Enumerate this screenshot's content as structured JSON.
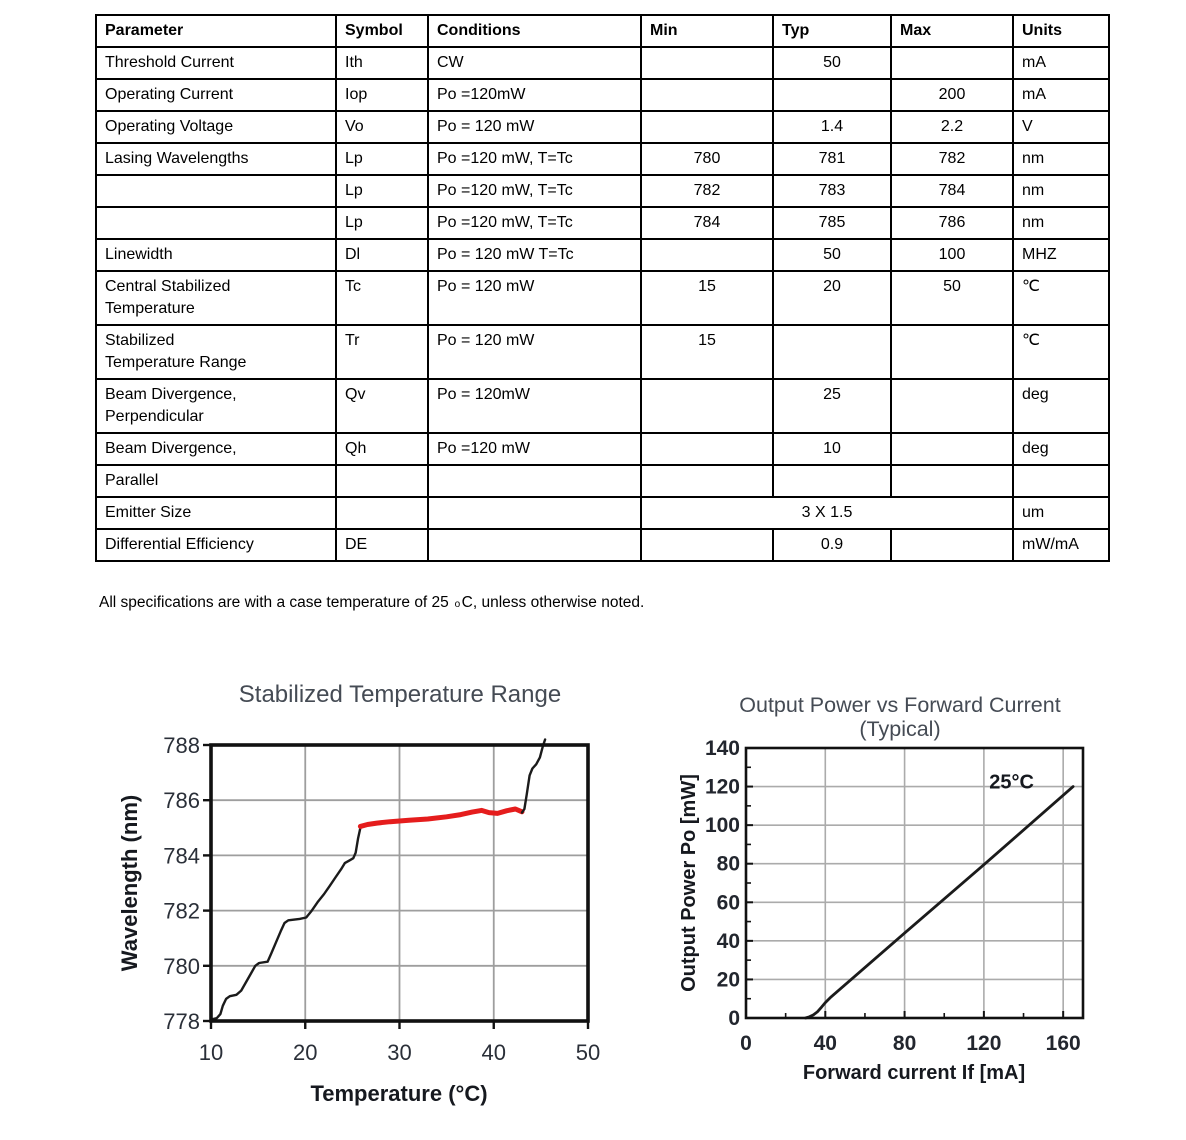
{
  "table": {
    "headers": [
      "Parameter",
      "Symbol",
      "Conditions",
      "Min",
      "Typ",
      "Max",
      "Units"
    ],
    "rows": [
      {
        "param": "Threshold Current",
        "symbol": "Ith",
        "cond": "CW",
        "min": "",
        "typ": "50",
        "max": "",
        "units": "mA"
      },
      {
        "param": "Operating Current",
        "symbol": "Iop",
        "cond": "Po =120mW",
        "min": "",
        "typ": "",
        "max": "200",
        "units": "mA"
      },
      {
        "param": "Operating Voltage",
        "symbol": "Vo",
        "cond": "Po = 120 mW",
        "min": "",
        "typ": "1.4",
        "max": "2.2",
        "units": "V"
      },
      {
        "param": "Lasing Wavelengths",
        "symbol": "Lp",
        "cond": "Po =120 mW, T=Tc",
        "min": "780",
        "typ": "781",
        "max": "782",
        "units": "nm"
      },
      {
        "param": "",
        "symbol": "Lp",
        "cond": "Po =120 mW, T=Tc",
        "min": "782",
        "typ": "783",
        "max": "784",
        "units": "nm"
      },
      {
        "param": "",
        "symbol": "Lp",
        "cond": "Po =120 mW, T=Tc",
        "min": "784",
        "typ": "785",
        "max": "786",
        "units": "nm"
      },
      {
        "param": "Linewidth",
        "symbol": "Dl",
        "cond": "Po = 120 mW T=Tc",
        "min": "",
        "typ": "50",
        "max": "100",
        "units": "MHZ"
      },
      {
        "param": "Central Stabilized\nTemperature",
        "symbol": "Tc",
        "cond": "Po = 120 mW",
        "min": "15",
        "typ": "20",
        "max": "50",
        "units": "℃"
      },
      {
        "param": "Stabilized\nTemperature Range",
        "symbol": "Tr",
        "cond": "Po = 120 mW",
        "min": "15",
        "typ": "",
        "max": "",
        "units": "℃"
      },
      {
        "param": "Beam Divergence,\nPerpendicular",
        "symbol": "Qv",
        "cond": "Po = 120mW",
        "min": "",
        "typ": "25",
        "max": "",
        "units": "deg"
      },
      {
        "param": "Beam Divergence,",
        "symbol": "Qh",
        "cond": "Po =120 mW",
        "min": "",
        "typ": "10",
        "max": "",
        "units": "deg"
      },
      {
        "param": "Parallel",
        "symbol": "",
        "cond": "",
        "min": "",
        "typ": "",
        "max": "",
        "units": ""
      },
      {
        "param": "Emitter Size",
        "symbol": "",
        "cond": "",
        "merged": "3 X 1.5",
        "units": "um"
      },
      {
        "param": "Differential Efficiency",
        "symbol": "DE",
        "cond": "",
        "min": "",
        "typ": "0.9",
        "max": "",
        "units": "mW/mA"
      }
    ],
    "note": {
      "prefix": "All specifications are with a case temperature of 25 ",
      "degree": "o",
      "suffix": "C, unless otherwise noted."
    }
  },
  "chart_data": [
    {
      "id": "stabilized-temperature-range",
      "type": "line",
      "title": "Stabilized Temperature Range",
      "subtitle": "",
      "xlabel": "Temperature (°C)",
      "ylabel": "Wavelength (nm)",
      "xlim": [
        10,
        50
      ],
      "ylim": [
        778,
        788
      ],
      "xticks": [
        10,
        20,
        30,
        40,
        50
      ],
      "yticks": [
        778,
        780,
        782,
        784,
        786,
        788
      ],
      "xgrid": [
        20,
        30,
        40
      ],
      "ygrid": [
        780,
        782,
        784,
        786
      ],
      "grid": "both",
      "legend": "none",
      "style": {
        "frame_color": "#111111",
        "grid_color": "#9e9e9e",
        "tick_color": "#2a2f38",
        "label_color": "#16191f",
        "title_color": "#454b54"
      },
      "series": [
        {
          "name": "wavelength-rise-black",
          "color": "#1b1b1b",
          "width": 2.4,
          "points": [
            [
              10,
              778.05
            ],
            [
              10.6,
              778.1
            ],
            [
              11,
              778.25
            ],
            [
              11.25,
              778.55
            ],
            [
              11.6,
              778.8
            ],
            [
              12,
              778.9
            ],
            [
              12.7,
              778.95
            ],
            [
              13.2,
              779.1
            ],
            [
              13.7,
              779.4
            ],
            [
              14.2,
              779.7
            ],
            [
              14.7,
              780.0
            ],
            [
              15.1,
              780.1
            ],
            [
              16,
              780.15
            ],
            [
              16.4,
              780.45
            ],
            [
              16.9,
              780.85
            ],
            [
              17.4,
              781.25
            ],
            [
              17.8,
              781.55
            ],
            [
              18.2,
              781.65
            ],
            [
              19.4,
              781.7
            ],
            [
              20.1,
              781.75
            ],
            [
              20.7,
              782.0
            ],
            [
              21.3,
              782.3
            ],
            [
              22,
              782.6
            ],
            [
              22.6,
              782.9
            ],
            [
              23.2,
              783.2
            ],
            [
              23.8,
              783.5
            ],
            [
              24.2,
              783.72
            ],
            [
              24.7,
              783.82
            ],
            [
              25.1,
              783.9
            ],
            [
              25.35,
              784.1
            ],
            [
              25.6,
              784.6
            ],
            [
              25.85,
              785.0
            ]
          ]
        },
        {
          "name": "stabilized-range-red",
          "color": "#e51d1d",
          "width": 5,
          "points": [
            [
              25.85,
              785.05
            ],
            [
              26.6,
              785.12
            ],
            [
              27.6,
              785.17
            ],
            [
              29,
              785.22
            ],
            [
              31,
              785.27
            ],
            [
              33,
              785.32
            ],
            [
              35,
              785.4
            ],
            [
              36.5,
              785.48
            ],
            [
              37.7,
              785.57
            ],
            [
              38.7,
              785.63
            ],
            [
              39.5,
              785.55
            ],
            [
              40.4,
              785.52
            ],
            [
              41.4,
              785.62
            ],
            [
              42.3,
              785.68
            ],
            [
              43,
              785.58
            ]
          ]
        },
        {
          "name": "wavelength-tail-black",
          "color": "#1b1b1b",
          "width": 2.4,
          "points": [
            [
              43,
              785.55
            ],
            [
              43.25,
              785.68
            ],
            [
              43.5,
              786.2
            ],
            [
              43.8,
              786.9
            ],
            [
              44.1,
              787.15
            ],
            [
              44.5,
              787.3
            ],
            [
              44.9,
              787.55
            ],
            [
              45.2,
              787.95
            ],
            [
              45.45,
              788.2
            ]
          ]
        }
      ]
    },
    {
      "id": "output-power-vs-forward-current",
      "type": "line",
      "title": "Output Power vs Forward Current",
      "subtitle": "(Typical)",
      "xlabel": "Forward current If [mA]",
      "ylabel": "Output Power Po [mW]",
      "xlim": [
        0,
        170
      ],
      "ylim": [
        0,
        140
      ],
      "xticks": [
        0,
        40,
        80,
        120,
        160
      ],
      "yticks": [
        0,
        20,
        40,
        60,
        80,
        100,
        120,
        140
      ],
      "xminor": [
        20,
        60,
        100,
        140
      ],
      "yminor": [
        10,
        30,
        50,
        70,
        90,
        110,
        130
      ],
      "xgrid": [
        40,
        80,
        120,
        160
      ],
      "ygrid": [
        20,
        40,
        60,
        80,
        100,
        120
      ],
      "grid": "both",
      "legend": "none",
      "annotation": {
        "text": "25°C",
        "x": 134,
        "y": 119
      },
      "style": {
        "frame_color": "#111111",
        "grid_color": "#ababab",
        "tick_color": "#22262e",
        "label_color": "#16191f",
        "title_color": "#454b54"
      },
      "series": [
        {
          "name": "po-vs-if-25c",
          "color": "#1b1b1b",
          "width": 2.8,
          "points": [
            [
              30,
              0
            ],
            [
              32,
              0.6
            ],
            [
              34,
              1.6
            ],
            [
              36,
              3.2
            ],
            [
              38,
              5.5
            ],
            [
              40,
              8
            ],
            [
              43,
              11
            ],
            [
              80,
              44
            ],
            [
              120,
              79.5
            ],
            [
              165,
              120
            ]
          ]
        }
      ]
    }
  ]
}
